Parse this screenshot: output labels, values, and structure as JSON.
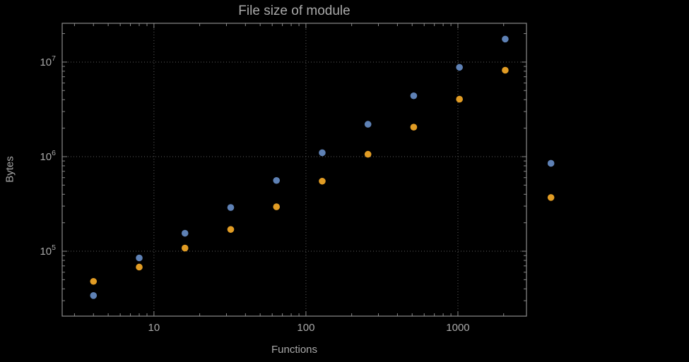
{
  "colors": {
    "background": "#000000",
    "text": "#a9a9a9",
    "frame": "#8a8a8a",
    "grid": "#5e5e5e"
  },
  "chart_data": {
    "type": "scatter",
    "title": "File size of module",
    "xlabel": "Functions",
    "ylabel": "Bytes",
    "x_scale": "log",
    "y_scale": "log",
    "grid": true,
    "legend": "none",
    "xlim": [
      2.49,
      2826
    ],
    "ylim": [
      20600,
      25700000
    ],
    "x_ticks": [
      10,
      100,
      1000
    ],
    "x_tick_labels": [
      "10",
      "100",
      "1000"
    ],
    "y_ticks": [
      100000,
      1000000,
      10000000
    ],
    "y_tick_labels": [
      {
        "base": "10",
        "exp": "5"
      },
      {
        "base": "10",
        "exp": "6"
      },
      {
        "base": "10",
        "exp": "7"
      }
    ],
    "x": [
      4,
      8,
      16,
      32,
      64,
      128,
      256,
      512,
      1024,
      2048,
      4096
    ],
    "series": [
      {
        "name": "blue",
        "color": "#5e81b5",
        "values": [
          34000,
          85000,
          155000,
          290000,
          560000,
          1100000,
          2200000,
          4400000,
          8800000,
          17500000,
          850000
        ]
      },
      {
        "name": "orange",
        "color": "#e19c24",
        "values": [
          48000,
          68000,
          108000,
          170000,
          295000,
          550000,
          1060000,
          2050000,
          4050000,
          8200000,
          370000
        ]
      }
    ]
  }
}
